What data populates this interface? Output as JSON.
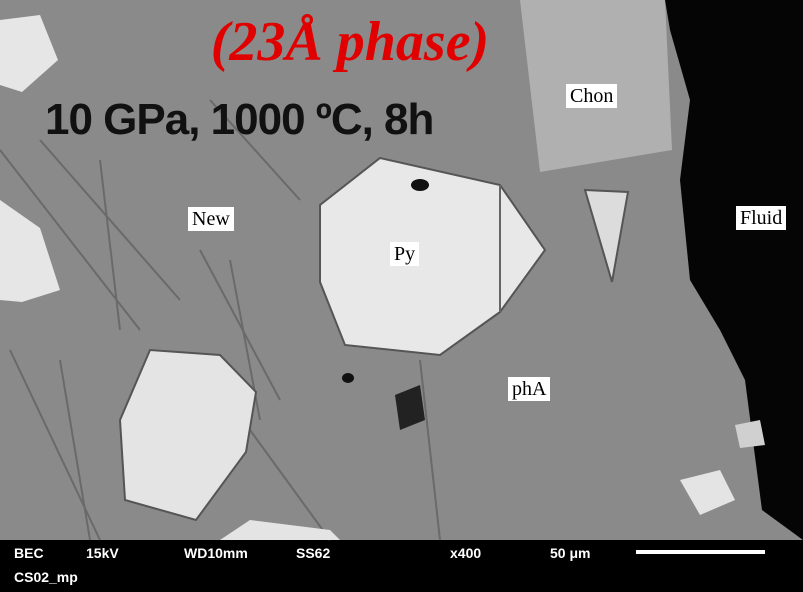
{
  "title": "(23Å phase)",
  "condition": "10 GPa, 1000 ºC, 8h",
  "labels": {
    "chon": "Chon",
    "new": "New",
    "fluid": "Fluid",
    "py": "Py",
    "pha": "phA"
  },
  "info_bar": {
    "mode": "BEC",
    "voltage": "15kV",
    "wd": "WD10mm",
    "ss": "SS62",
    "mag": "x400",
    "scale": "50 μm",
    "sample": "CS02_mp"
  }
}
